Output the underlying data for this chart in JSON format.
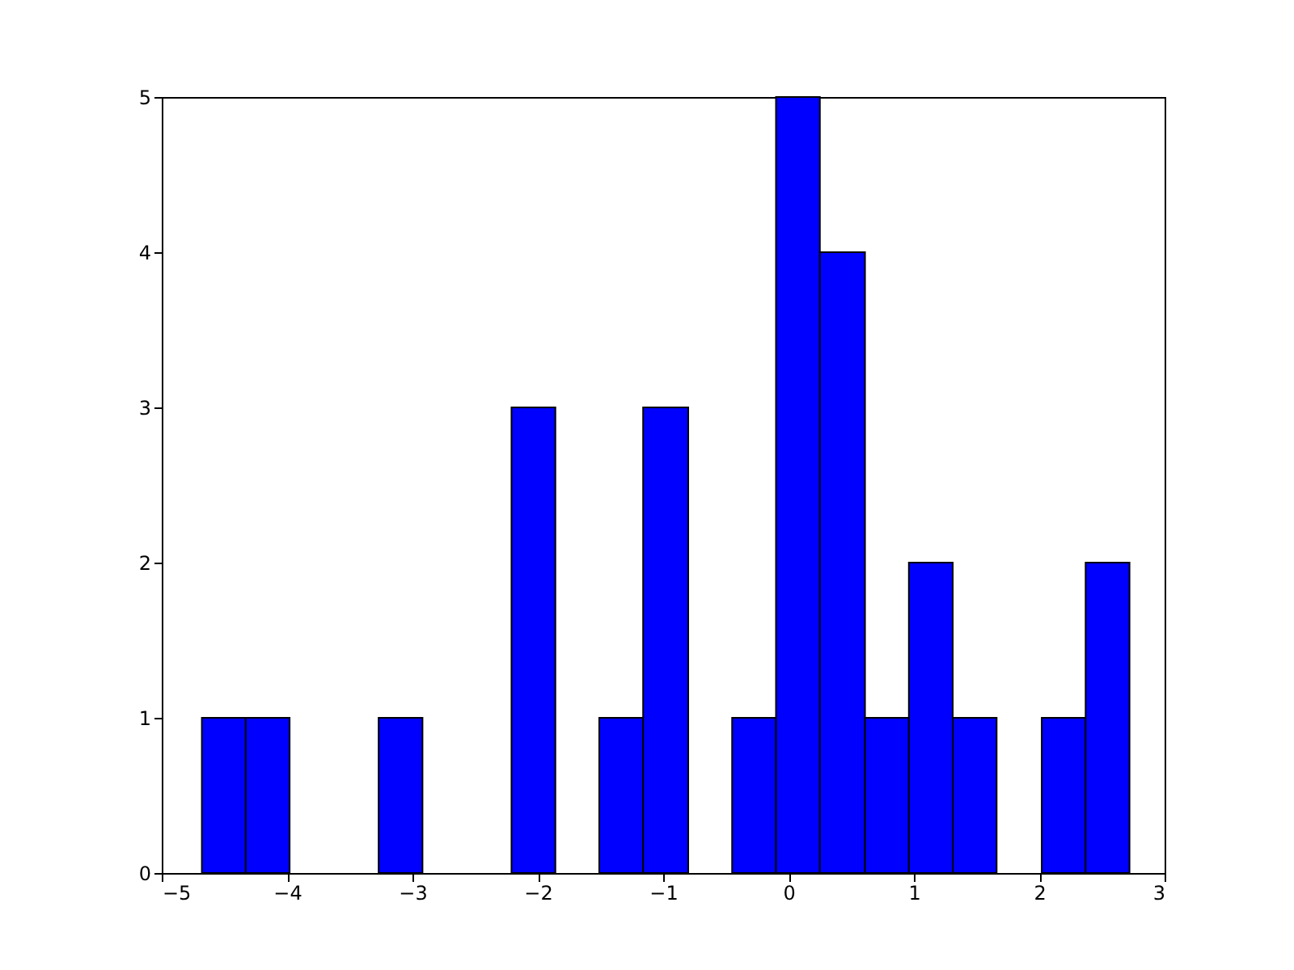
{
  "chart_data": {
    "type": "histogram",
    "bins": [
      -4.68,
      -4.33,
      -3.98,
      -3.27,
      -2.92,
      -2.21,
      -1.86,
      -1.51,
      -1.16,
      -0.8,
      -0.45,
      -0.1,
      0.25,
      0.61,
      0.96,
      1.31,
      1.66,
      2.02,
      2.37,
      2.72
    ],
    "values": [
      1,
      1,
      0,
      1,
      0,
      3,
      0,
      1,
      3,
      0,
      1,
      5,
      4,
      1,
      2,
      1,
      0,
      1,
      2
    ],
    "color": "#0000ff",
    "xlim": [
      -5,
      3
    ],
    "xticks": [
      -5,
      -4,
      -3,
      -2,
      -1,
      0,
      1,
      2,
      3
    ],
    "ylim": [
      0,
      5
    ],
    "yticks": [
      0,
      1,
      2,
      3,
      4,
      5
    ],
    "grid": false
  }
}
